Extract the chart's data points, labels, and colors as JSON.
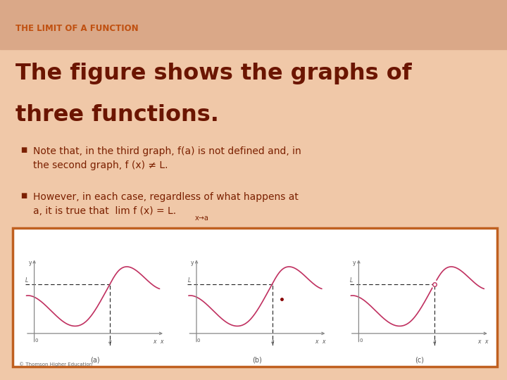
{
  "title_small": "THE LIMIT OF A FUNCTION",
  "title_small_color": "#c05010",
  "title_large_line1": "The figure shows the graphs of",
  "title_large_line2": "three functions.",
  "title_large_color": "#6b1500",
  "bg_color_top": "#e8b898",
  "bg_color_main": "#f0c8a8",
  "header_band_color": "#d49878",
  "bullet_color": "#7b2000",
  "bullet_text_color": "#7b2000",
  "plot_bg": "#ffffff",
  "curve_color": "#c03060",
  "box_border_color": "#c06020",
  "caption_color": "#555555",
  "copyright_color": "#666666",
  "axis_color": "#888888",
  "label_color": "#555555",
  "dashed_color": "#222222",
  "caption_a": "(a)",
  "caption_b": "(b)",
  "caption_c": "(c)",
  "copyright": "© Thomson Higher Education"
}
